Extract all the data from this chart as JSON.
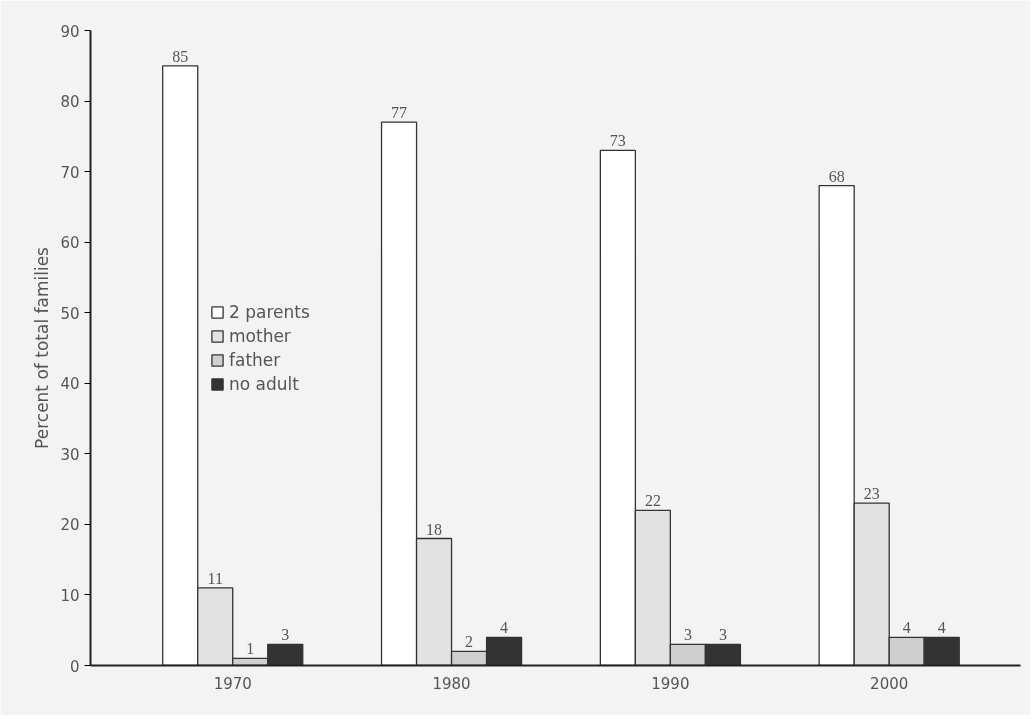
{
  "chart_data": {
    "type": "bar",
    "ylabel": "Percent of total families",
    "categories": [
      "1970",
      "1980",
      "1990",
      "2000"
    ],
    "series": [
      {
        "name": "2 parents",
        "color": "#ffffff",
        "values": [
          85,
          77,
          73,
          68
        ]
      },
      {
        "name": "mother",
        "color": "#e2e2e2",
        "values": [
          11,
          18,
          22,
          23
        ]
      },
      {
        "name": "father",
        "color": "#cfcfcf",
        "values": [
          1,
          2,
          3,
          4
        ]
      },
      {
        "name": "no adult",
        "color": "#333333",
        "values": [
          3,
          4,
          3,
          4
        ]
      }
    ],
    "ylim": [
      0,
      90
    ],
    "yticks": [
      0,
      10,
      20,
      30,
      40,
      50,
      60,
      70,
      80,
      90
    ],
    "data_labels": true,
    "grid": false,
    "legend": "left"
  }
}
